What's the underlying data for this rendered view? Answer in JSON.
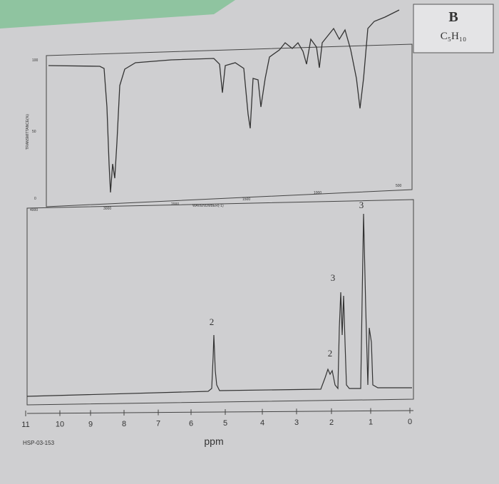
{
  "card": {
    "letter": "B",
    "formula": "C₅H₁₀"
  },
  "ir": {
    "y_labels": [
      "100",
      "50",
      "0"
    ],
    "y_title": "TRANSMITTANCE(%)",
    "x_labels": [
      "4000",
      "3000",
      "2000",
      "1500",
      "1000",
      "500"
    ],
    "x_title": "WAVENUMBER(-1)"
  },
  "nmr": {
    "x_labels": [
      "11",
      "10",
      "9",
      "8",
      "7",
      "6",
      "5",
      "4",
      "3",
      "2",
      "1",
      "0"
    ],
    "x_title": "ppm",
    "code": "HSP-03-153",
    "peak_labels": [
      "2",
      "2",
      "3",
      "3"
    ]
  }
}
